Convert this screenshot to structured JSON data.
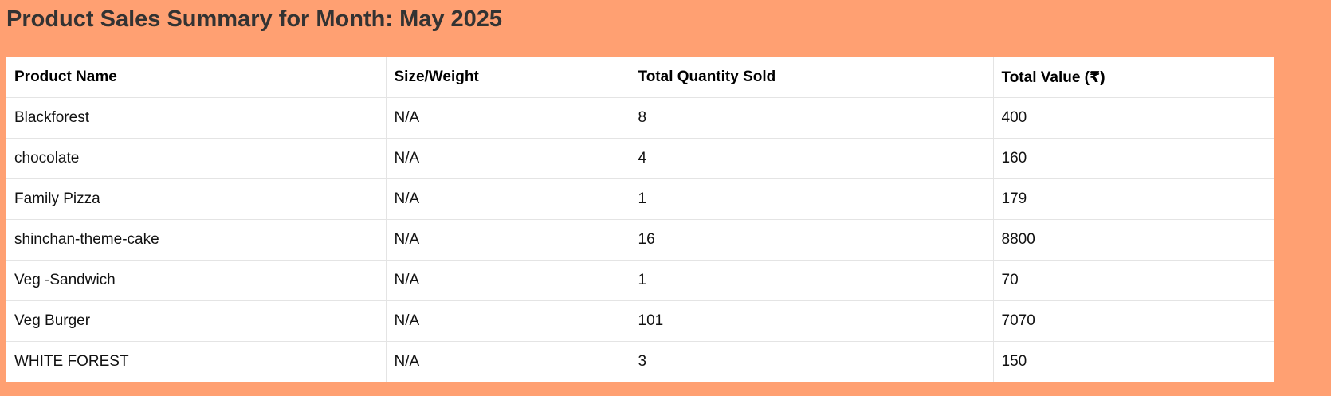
{
  "page": {
    "title": "Product Sales Summary for Month: May 2025"
  },
  "table": {
    "headers": [
      "Product Name",
      "Size/Weight",
      "Total Quantity Sold",
      "Total Value (₹)"
    ],
    "rows": [
      [
        "Blackforest",
        "N/A",
        "8",
        "400"
      ],
      [
        "chocolate",
        "N/A",
        "4",
        "160"
      ],
      [
        "Family Pizza",
        "N/A",
        "1",
        "179"
      ],
      [
        "shinchan-theme-cake",
        "N/A",
        "16",
        "8800"
      ],
      [
        "Veg -Sandwich",
        "N/A",
        "1",
        "70"
      ],
      [
        "Veg Burger",
        "N/A",
        "101",
        "7070"
      ],
      [
        "WHITE FOREST",
        "N/A",
        "3",
        "150"
      ]
    ]
  },
  "colors": {
    "background": "#FFA072",
    "table_background": "#FFFFFF",
    "grid_line": "#E4E4E4"
  }
}
